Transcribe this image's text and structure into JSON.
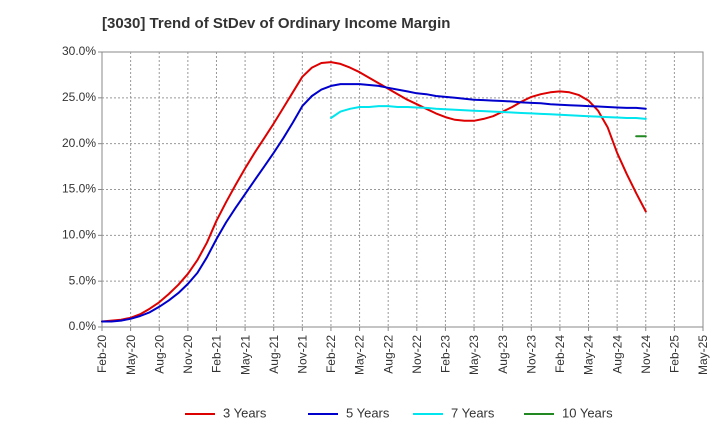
{
  "chart_data": {
    "type": "line",
    "title": "[3030]  Trend of StDev of Ordinary Income Margin",
    "xlabel": "",
    "ylabel": "",
    "x_ticks": [
      "Feb-20",
      "May-20",
      "Aug-20",
      "Nov-20",
      "Feb-21",
      "May-21",
      "Aug-21",
      "Nov-21",
      "Feb-22",
      "May-22",
      "Aug-22",
      "Nov-22",
      "Feb-23",
      "May-23",
      "Aug-23",
      "Nov-23",
      "Feb-24",
      "May-24",
      "Aug-24",
      "Nov-24",
      "Feb-25",
      "May-25"
    ],
    "y_ticks": [
      "0.0%",
      "5.0%",
      "10.0%",
      "15.0%",
      "20.0%",
      "25.0%",
      "30.0%"
    ],
    "ylim": [
      0,
      30
    ],
    "grid": true,
    "legend_position": "bottom",
    "series": [
      {
        "name": "3 Years",
        "color": "#dd0000",
        "start_index": 0,
        "values": [
          0.6,
          0.7,
          0.8,
          1.0,
          1.4,
          2.0,
          2.7,
          3.6,
          4.6,
          5.8,
          7.3,
          9.2,
          11.6,
          13.6,
          15.5,
          17.3,
          19.0,
          20.6,
          22.2,
          23.9,
          25.6,
          27.3,
          28.3,
          28.8,
          28.9,
          28.7,
          28.3,
          27.8,
          27.2,
          26.6,
          26.0,
          25.4,
          24.8,
          24.3,
          23.8,
          23.3,
          22.9,
          22.6,
          22.5,
          22.5,
          22.7,
          23.0,
          23.5,
          24.0,
          24.6,
          25.1,
          25.4,
          25.6,
          25.7,
          25.6,
          25.3,
          24.7,
          23.6,
          21.8,
          19.0,
          16.7,
          14.6,
          12.6
        ]
      },
      {
        "name": "5 Years",
        "color": "#0000cc",
        "start_index": 0,
        "values": [
          0.6,
          0.6,
          0.7,
          0.9,
          1.2,
          1.6,
          2.2,
          2.9,
          3.7,
          4.7,
          5.9,
          7.6,
          9.6,
          11.4,
          13.0,
          14.5,
          16.0,
          17.5,
          19.0,
          20.6,
          22.3,
          24.1,
          25.2,
          25.9,
          26.3,
          26.5,
          26.5,
          26.5,
          26.4,
          26.3,
          26.1,
          25.9,
          25.7,
          25.5,
          25.4,
          25.2,
          25.1,
          25.0,
          24.9,
          24.8,
          24.75,
          24.7,
          24.65,
          24.6,
          24.5,
          24.45,
          24.4,
          24.3,
          24.25,
          24.2,
          24.15,
          24.1,
          24.05,
          24.0,
          23.95,
          23.9,
          23.9,
          23.8
        ]
      },
      {
        "name": "7 Years",
        "color": "#00e5ee",
        "start_index": 24,
        "values": [
          22.8,
          23.5,
          23.8,
          24.0,
          24.0,
          24.1,
          24.1,
          24.0,
          24.0,
          23.95,
          23.9,
          23.8,
          23.75,
          23.7,
          23.65,
          23.6,
          23.55,
          23.5,
          23.45,
          23.4,
          23.35,
          23.3,
          23.25,
          23.2,
          23.15,
          23.1,
          23.05,
          23.0,
          22.95,
          22.9,
          22.85,
          22.8,
          22.8,
          22.7
        ]
      },
      {
        "name": "10 Years",
        "color": "#228822",
        "start_index": 56,
        "values": [
          20.8,
          20.8
        ]
      }
    ]
  }
}
